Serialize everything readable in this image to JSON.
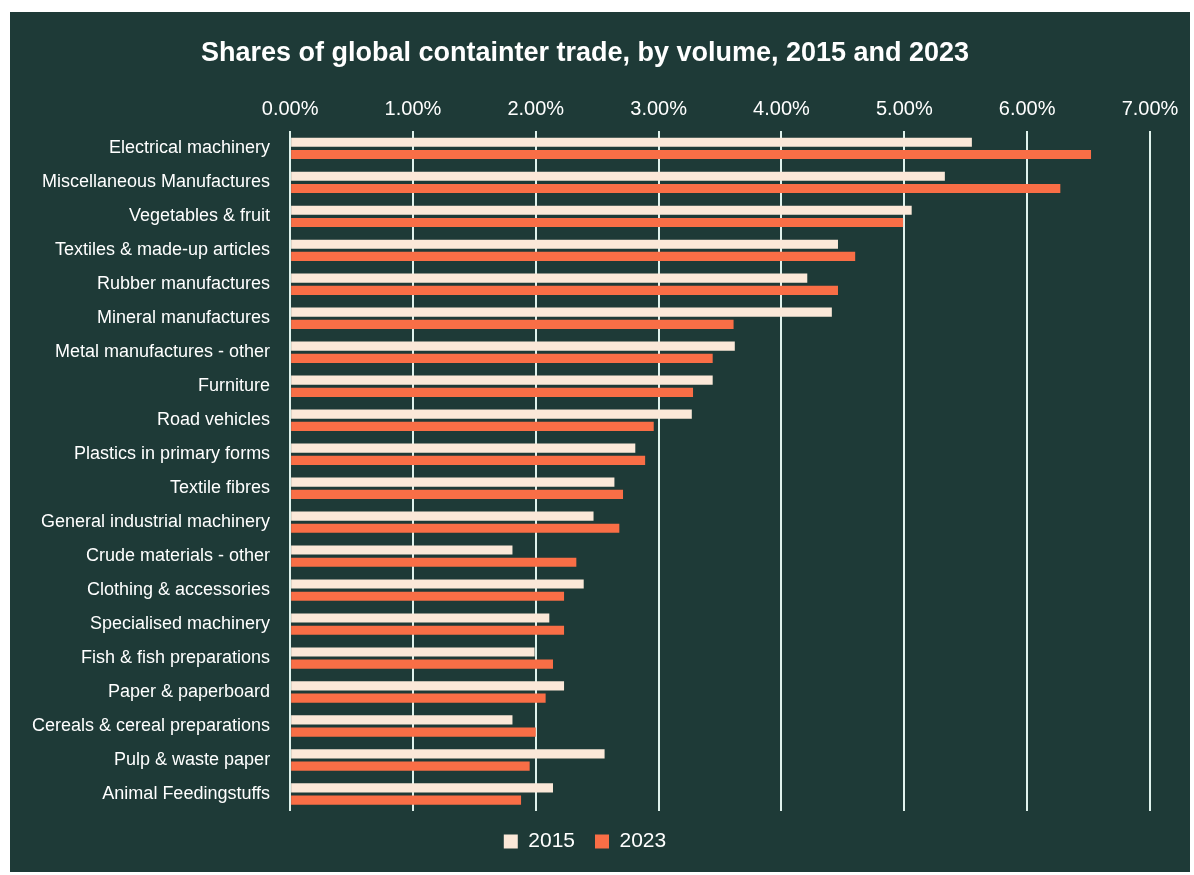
{
  "chart_data": {
    "type": "bar",
    "orientation": "horizontal",
    "title": "Shares of global containter trade, by volume, 2015 and 2023",
    "categories": [
      "Electrical machinery",
      "Miscellaneous Manufactures",
      "Vegetables & fruit",
      "Textiles & made-up articles",
      "Rubber manufactures",
      "Mineral manufactures",
      "Metal manufactures - other",
      "Furniture",
      "Road vehicles",
      "Plastics in primary forms",
      "Textile fibres",
      "General industrial machinery",
      "Crude materials - other",
      "Clothing & accessories",
      "Specialised machinery",
      "Fish & fish preparations",
      "Paper & paperboard",
      "Cereals & cereal preparations",
      "Pulp & waste paper",
      "Animal Feedingstuffs"
    ],
    "series": [
      {
        "name": "2015",
        "color": "#fbe8d8",
        "values": [
          5.55,
          5.33,
          5.06,
          4.46,
          4.21,
          4.41,
          3.62,
          3.44,
          3.27,
          2.81,
          2.64,
          2.47,
          1.81,
          2.39,
          2.11,
          1.99,
          2.23,
          1.81,
          2.56,
          2.14
        ]
      },
      {
        "name": "2023",
        "color": "#f96e46",
        "values": [
          6.52,
          6.27,
          4.99,
          4.6,
          4.46,
          3.61,
          3.44,
          3.28,
          2.96,
          2.89,
          2.71,
          2.68,
          2.33,
          2.23,
          2.23,
          2.14,
          2.08,
          2.0,
          1.95,
          1.88
        ]
      }
    ],
    "xlim": [
      0,
      7
    ],
    "xticks": [
      {
        "value": 0,
        "label": "0.00%"
      },
      {
        "value": 1,
        "label": "1.00%"
      },
      {
        "value": 2,
        "label": "2.00%"
      },
      {
        "value": 3,
        "label": "3.00%"
      },
      {
        "value": 4,
        "label": "4.00%"
      },
      {
        "value": 5,
        "label": "5.00%"
      },
      {
        "value": 6,
        "label": "6.00%"
      },
      {
        "value": 7,
        "label": "7.00%"
      }
    ],
    "grid": "x",
    "legend": "bottom"
  }
}
